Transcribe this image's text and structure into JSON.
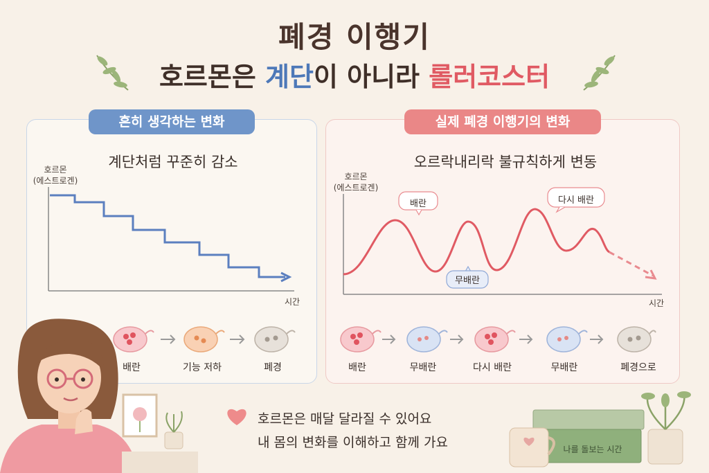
{
  "title": "폐경 이행기",
  "subtitle": {
    "part1": "호르몬은 ",
    "part2": "계단",
    "part3": "이 아니라 ",
    "part4": "롤러코스터"
  },
  "left_panel": {
    "pill": "흔히 생각하는 변화",
    "heading": "계단처럼 꾸준히 감소",
    "y_axis_line1": "호르몬",
    "y_axis_line2": "(에스트로겐)",
    "x_axis": "시간",
    "stages": [
      "배란",
      "기능 저하",
      "폐경"
    ]
  },
  "right_panel": {
    "pill": "실제 폐경 이행기의 변화",
    "heading": "오르락내리락 불규칙하게 변동",
    "y_axis_line1": "호르몬",
    "y_axis_line2": "(에스트로겐)",
    "x_axis": "시간",
    "bubble_ovulation": "배란",
    "bubble_anovulation": "무배란",
    "bubble_again": "다시 배란",
    "stages": [
      "배란",
      "무배란",
      "다시 배란",
      "무배란",
      "폐경으로"
    ]
  },
  "message": {
    "line1": "호르몬은 매달 달라질 수 있어요",
    "line2": "내 몸의 변화를 이해하고 함께 가요"
  },
  "book_text": "나를 돌보는 시간",
  "colors": {
    "blue": "#5b7fbf",
    "red": "#e05a63",
    "heart": "#ee8b8b"
  }
}
